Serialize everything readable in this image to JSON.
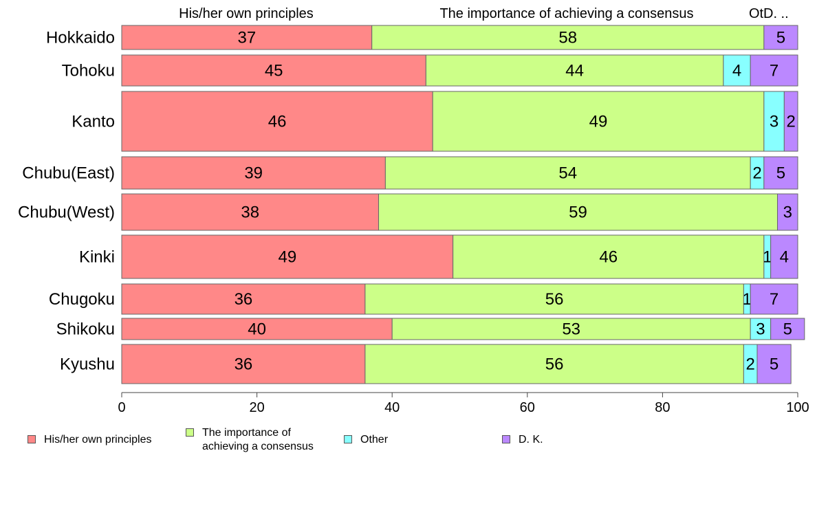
{
  "chart_data": {
    "type": "bar",
    "orientation": "horizontal",
    "stacked": true,
    "categories": [
      "Hokkaido",
      "Tohoku",
      "Kanto",
      "Chubu(East)",
      "Chubu(West)",
      "Kinki",
      "Chugoku",
      "Shikoku",
      "Kyushu"
    ],
    "series": [
      {
        "name": "His/her own principles",
        "color": "#ff8888",
        "values": [
          37,
          45,
          46,
          39,
          38,
          49,
          36,
          40,
          36
        ]
      },
      {
        "name": "The importance of\nachieving a consensus",
        "color": "#ccff88",
        "values": [
          58,
          44,
          49,
          54,
          59,
          46,
          56,
          53,
          56
        ]
      },
      {
        "name": "Other",
        "color": "#88ffff",
        "values": [
          0,
          4,
          3,
          2,
          0,
          1,
          1,
          3,
          2
        ]
      },
      {
        "name": "D. K.",
        "color": "#bb88ff",
        "values": [
          5,
          7,
          2,
          5,
          3,
          4,
          7,
          5,
          5
        ]
      }
    ],
    "data_labels": [
      [
        "37",
        "58",
        "",
        "5"
      ],
      [
        "45",
        "44",
        "4",
        "7"
      ],
      [
        "46",
        "49",
        "3",
        "2"
      ],
      [
        "39",
        "54",
        "2",
        "5"
      ],
      [
        "38",
        "59",
        "",
        "3"
      ],
      [
        "49",
        "46",
        "1",
        "4"
      ],
      [
        "36",
        "56",
        "1",
        "7"
      ],
      [
        "40",
        "53",
        "3",
        "5"
      ],
      [
        "36",
        "56",
        "2",
        "5"
      ]
    ],
    "top_labels": [
      "His/her own principles",
      "The importance of achieving a consensus",
      "Ot",
      "D. .."
    ],
    "xlim": [
      0,
      100
    ],
    "xticks": [
      "0",
      "20",
      "40",
      "60",
      "80",
      "100"
    ],
    "grid": false,
    "legend_position": "bottom"
  }
}
